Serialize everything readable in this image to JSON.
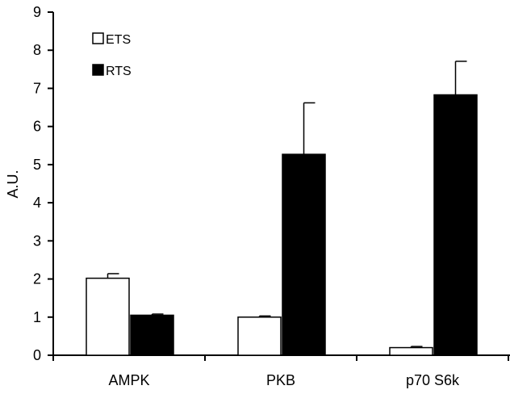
{
  "chart_data": {
    "type": "bar",
    "title": "",
    "xlabel": "",
    "ylabel": "A.U.",
    "ylim": [
      0,
      9
    ],
    "yticks": [
      0,
      1,
      2,
      3,
      4,
      5,
      6,
      7,
      8,
      9
    ],
    "categories": [
      "AMPK",
      "PKB",
      "p70 S6k"
    ],
    "series": [
      {
        "name": "ETS",
        "values": [
          2.02,
          1.0,
          0.2
        ],
        "errors": [
          0.12,
          0.03,
          0.03
        ],
        "color": "#ffffff"
      },
      {
        "name": "RTS",
        "values": [
          1.05,
          5.27,
          6.83
        ],
        "errors": [
          0.03,
          1.35,
          0.88
        ],
        "color": "#000000"
      }
    ],
    "legend_position": "top-left",
    "grid": false
  }
}
